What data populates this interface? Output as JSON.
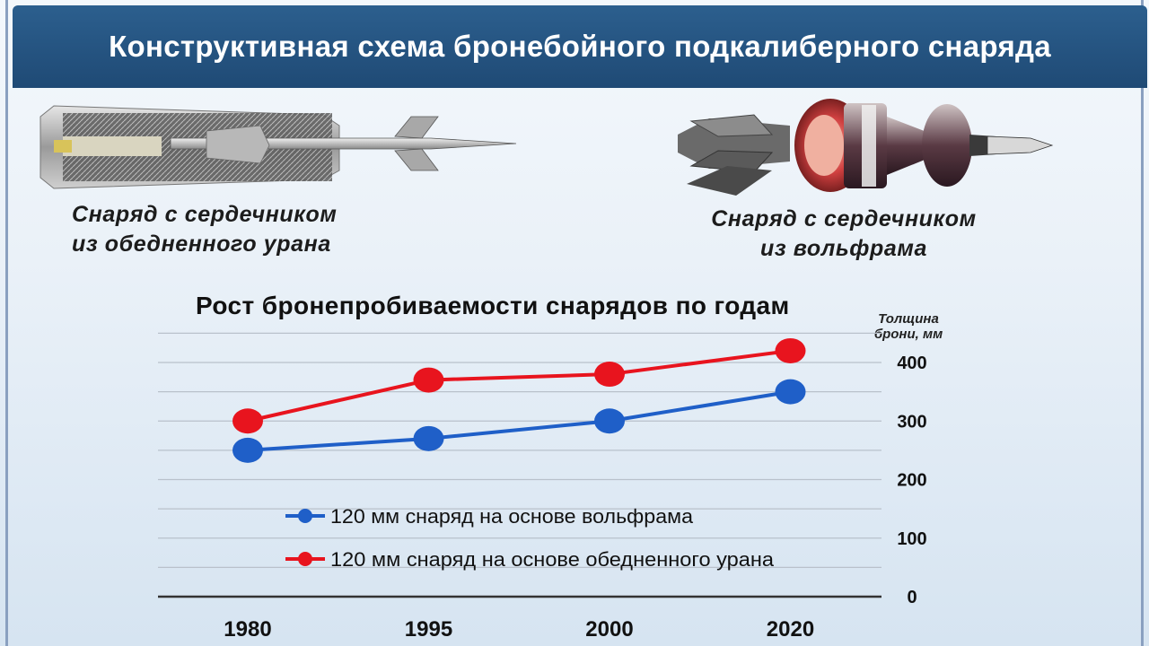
{
  "title": "Конструктивная схема бронебойного подкалиберного снаряда",
  "captions": {
    "uranium": [
      "Снаряд с сердечником",
      "из обедненного урана"
    ],
    "tungsten": [
      "Снаряд с сердечником",
      "из вольфрама"
    ]
  },
  "chart_data": {
    "type": "line",
    "title": "Рост бронепробиваемости снарядов по годам",
    "ylabel": [
      "Толщина",
      "брони, мм"
    ],
    "categories": [
      "1980",
      "1995",
      "2000",
      "2020"
    ],
    "ylim": [
      0,
      450
    ],
    "yticks": [
      0,
      100,
      200,
      300,
      400
    ],
    "y_tick_labels": [
      "0",
      "100",
      "200",
      "300",
      "400"
    ],
    "series": [
      {
        "name": "120 мм снаряд на основе вольфрама",
        "color": "#1f5fc8",
        "values": [
          250,
          270,
          300,
          350
        ]
      },
      {
        "name": "120 мм снаряд на основе обедненного урана",
        "color": "#e8141e",
        "values": [
          300,
          370,
          380,
          420
        ]
      }
    ],
    "grid": true,
    "legend": "bottom-left"
  },
  "icons": [
    "uranium-shell-image",
    "tungsten-shell-image"
  ]
}
